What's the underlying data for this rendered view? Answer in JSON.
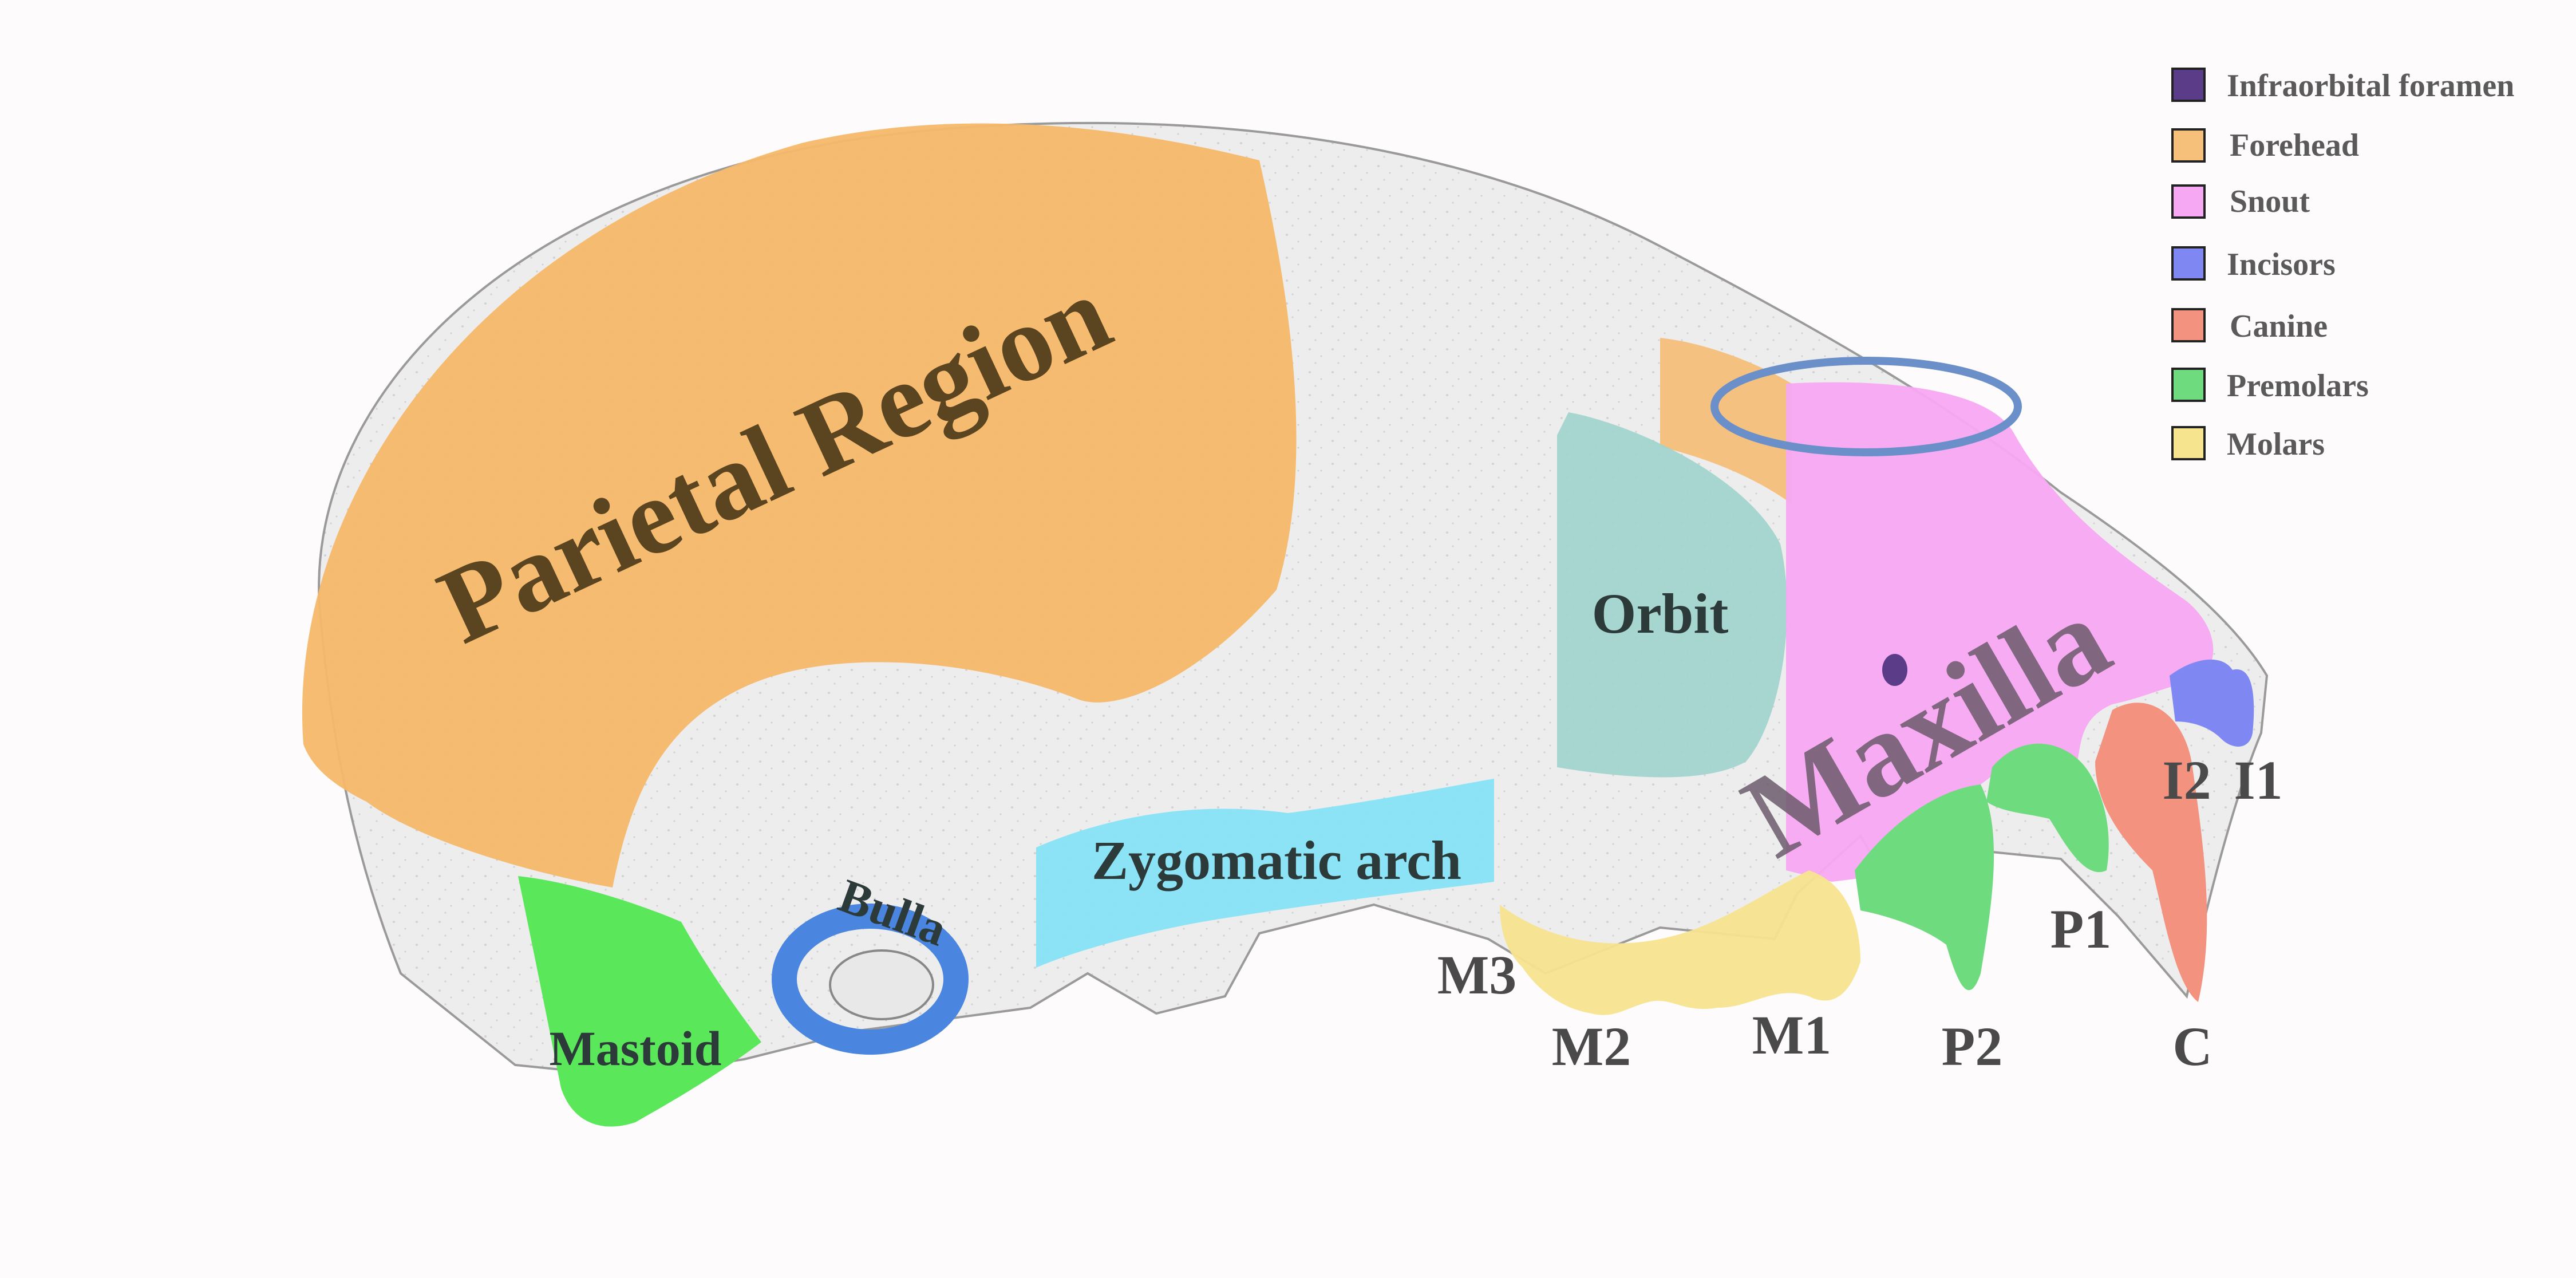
{
  "legend": [
    {
      "label": "Infraorbital foramen",
      "color": "#5b3c88"
    },
    {
      "label": "Forehead",
      "color": "#f6bf7a"
    },
    {
      "label": "Snout",
      "color": "#f7a8f2"
    },
    {
      "label": "Incisors",
      "color": "#7f88f2"
    },
    {
      "label": "Canine",
      "color": "#f2927f"
    },
    {
      "label": "Premolars",
      "color": "#6fdb7f"
    },
    {
      "label": "Molars",
      "color": "#f7e48f"
    }
  ],
  "regions": {
    "parietal": {
      "label": "Parietal Region",
      "color": "#f6b86a"
    },
    "orbit": {
      "label": "Orbit",
      "color": "#9fd4cc"
    },
    "maxilla": {
      "label": "Maxilla",
      "color": "#f7a8f2"
    },
    "zygomatic": {
      "label": "Zygomatic arch",
      "color": "#86e3f5"
    },
    "bulla": {
      "label": "Bulla",
      "color": "#4a86e0"
    },
    "mastoid": {
      "label": "Mastoid",
      "color": "#5ae85a"
    }
  },
  "teeth": {
    "m3": "M3",
    "m2": "M2",
    "m1": "M1",
    "p2": "P2",
    "p1": "P1",
    "c": "C",
    "i2": "I2",
    "i1": "I1"
  },
  "colors": {
    "bone": "#e6e6e6",
    "bone_outline": "#9a9a9a",
    "highlight_ellipse": "#6b8fc9",
    "parietal_text": "#5b4420",
    "maxilla_text": "#6b5a6b"
  }
}
